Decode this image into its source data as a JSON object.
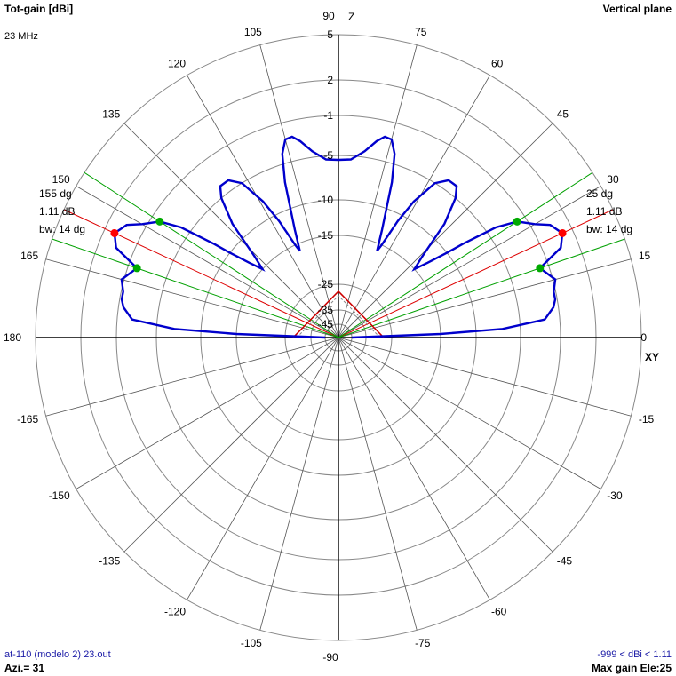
{
  "header": {
    "left_title": "Tot-gain [dBi]",
    "frequency": "23 MHz",
    "right_title": "Vertical plane"
  },
  "footer": {
    "file_name": "at-110 (modelo 2) 23.out",
    "azimuth": "Azi.= 31",
    "gain_range": "-999 < dBi < 1.11",
    "max_gain_ele": "Max gain Ele:25"
  },
  "markers": {
    "left": {
      "angle": "155 dg",
      "gain": "1.11 dB",
      "beamwidth": "bw: 14 dg"
    },
    "right": {
      "angle": "25 dg",
      "gain": "1.11 dB",
      "beamwidth": "bw: 14 dg"
    }
  },
  "colors": {
    "pattern": "#0000cc",
    "max_marker": "#ff0000",
    "halfpower_marker": "#00aa00",
    "max_line": "#dd0000",
    "halfpower_line": "#00a000",
    "grid_ring": "#888888",
    "grid_spoke": "#555555",
    "antenna": "#cc0000",
    "marker_text": "#cc0000"
  },
  "chart_data": {
    "type": "polar",
    "title": "Tot-gain [dBi]",
    "subtitle": "Vertical plane",
    "angle_unit": "deg",
    "axis_labels": {
      "top": "Z",
      "right": "XY"
    },
    "angle_ticks": [
      90,
      75,
      60,
      45,
      30,
      15,
      0,
      -15,
      -30,
      -45,
      -60,
      -75,
      -90,
      -105,
      -120,
      -135,
      -150,
      -165,
      180,
      165,
      150,
      135,
      120,
      105
    ],
    "gain_rings": [
      5,
      2,
      -1,
      -5,
      -10,
      -15,
      -25,
      -35,
      -45
    ],
    "gain_range": [
      -999,
      1.11
    ],
    "max_gain_elevation": 25,
    "max_gain_dbi": 1.11,
    "beamwidth_deg": 14,
    "half_power_elevations": [
      19,
      33
    ],
    "series": [
      {
        "values": [
          {
            "elev": 0,
            "gain": -45
          },
          {
            "elev": 2,
            "gain": -15
          },
          {
            "elev": 3,
            "gain": -7
          },
          {
            "elev": 5,
            "gain": -2.5
          },
          {
            "elev": 8,
            "gain": -1.5
          },
          {
            "elev": 10,
            "gain": -1.2
          },
          {
            "elev": 12,
            "gain": -1.2
          },
          {
            "elev": 15,
            "gain": -0.8
          },
          {
            "elev": 19,
            "gain": -1.9
          },
          {
            "elev": 22,
            "gain": 0.5
          },
          {
            "elev": 25,
            "gain": 1.11
          },
          {
            "elev": 28,
            "gain": 0.5
          },
          {
            "elev": 30,
            "gain": -0.6
          },
          {
            "elev": 33,
            "gain": -1.9
          },
          {
            "elev": 35,
            "gain": -4
          },
          {
            "elev": 37,
            "gain": -8
          },
          {
            "elev": 38,
            "gain": -10
          },
          {
            "elev": 40,
            "gain": -13
          },
          {
            "elev": 42,
            "gain": -15
          },
          {
            "elev": 44,
            "gain": -13
          },
          {
            "elev": 47,
            "gain": -8
          },
          {
            "elev": 50,
            "gain": -5
          },
          {
            "elev": 52,
            "gain": -4
          },
          {
            "elev": 55,
            "gain": -4
          },
          {
            "elev": 58,
            "gain": -5
          },
          {
            "elev": 61,
            "gain": -8
          },
          {
            "elev": 63,
            "gain": -11
          },
          {
            "elev": 65,
            "gain": -15
          },
          {
            "elev": 66,
            "gain": -16.5
          },
          {
            "elev": 68,
            "gain": -13
          },
          {
            "elev": 71,
            "gain": -7
          },
          {
            "elev": 73,
            "gain": -4
          },
          {
            "elev": 75,
            "gain": -2.7
          },
          {
            "elev": 77,
            "gain": -2.6
          },
          {
            "elev": 79,
            "gain": -3.2
          },
          {
            "elev": 82,
            "gain": -4.4
          },
          {
            "elev": 86,
            "gain": -5.4
          },
          {
            "elev": 90,
            "gain": -5.5
          }
        ]
      }
    ]
  }
}
